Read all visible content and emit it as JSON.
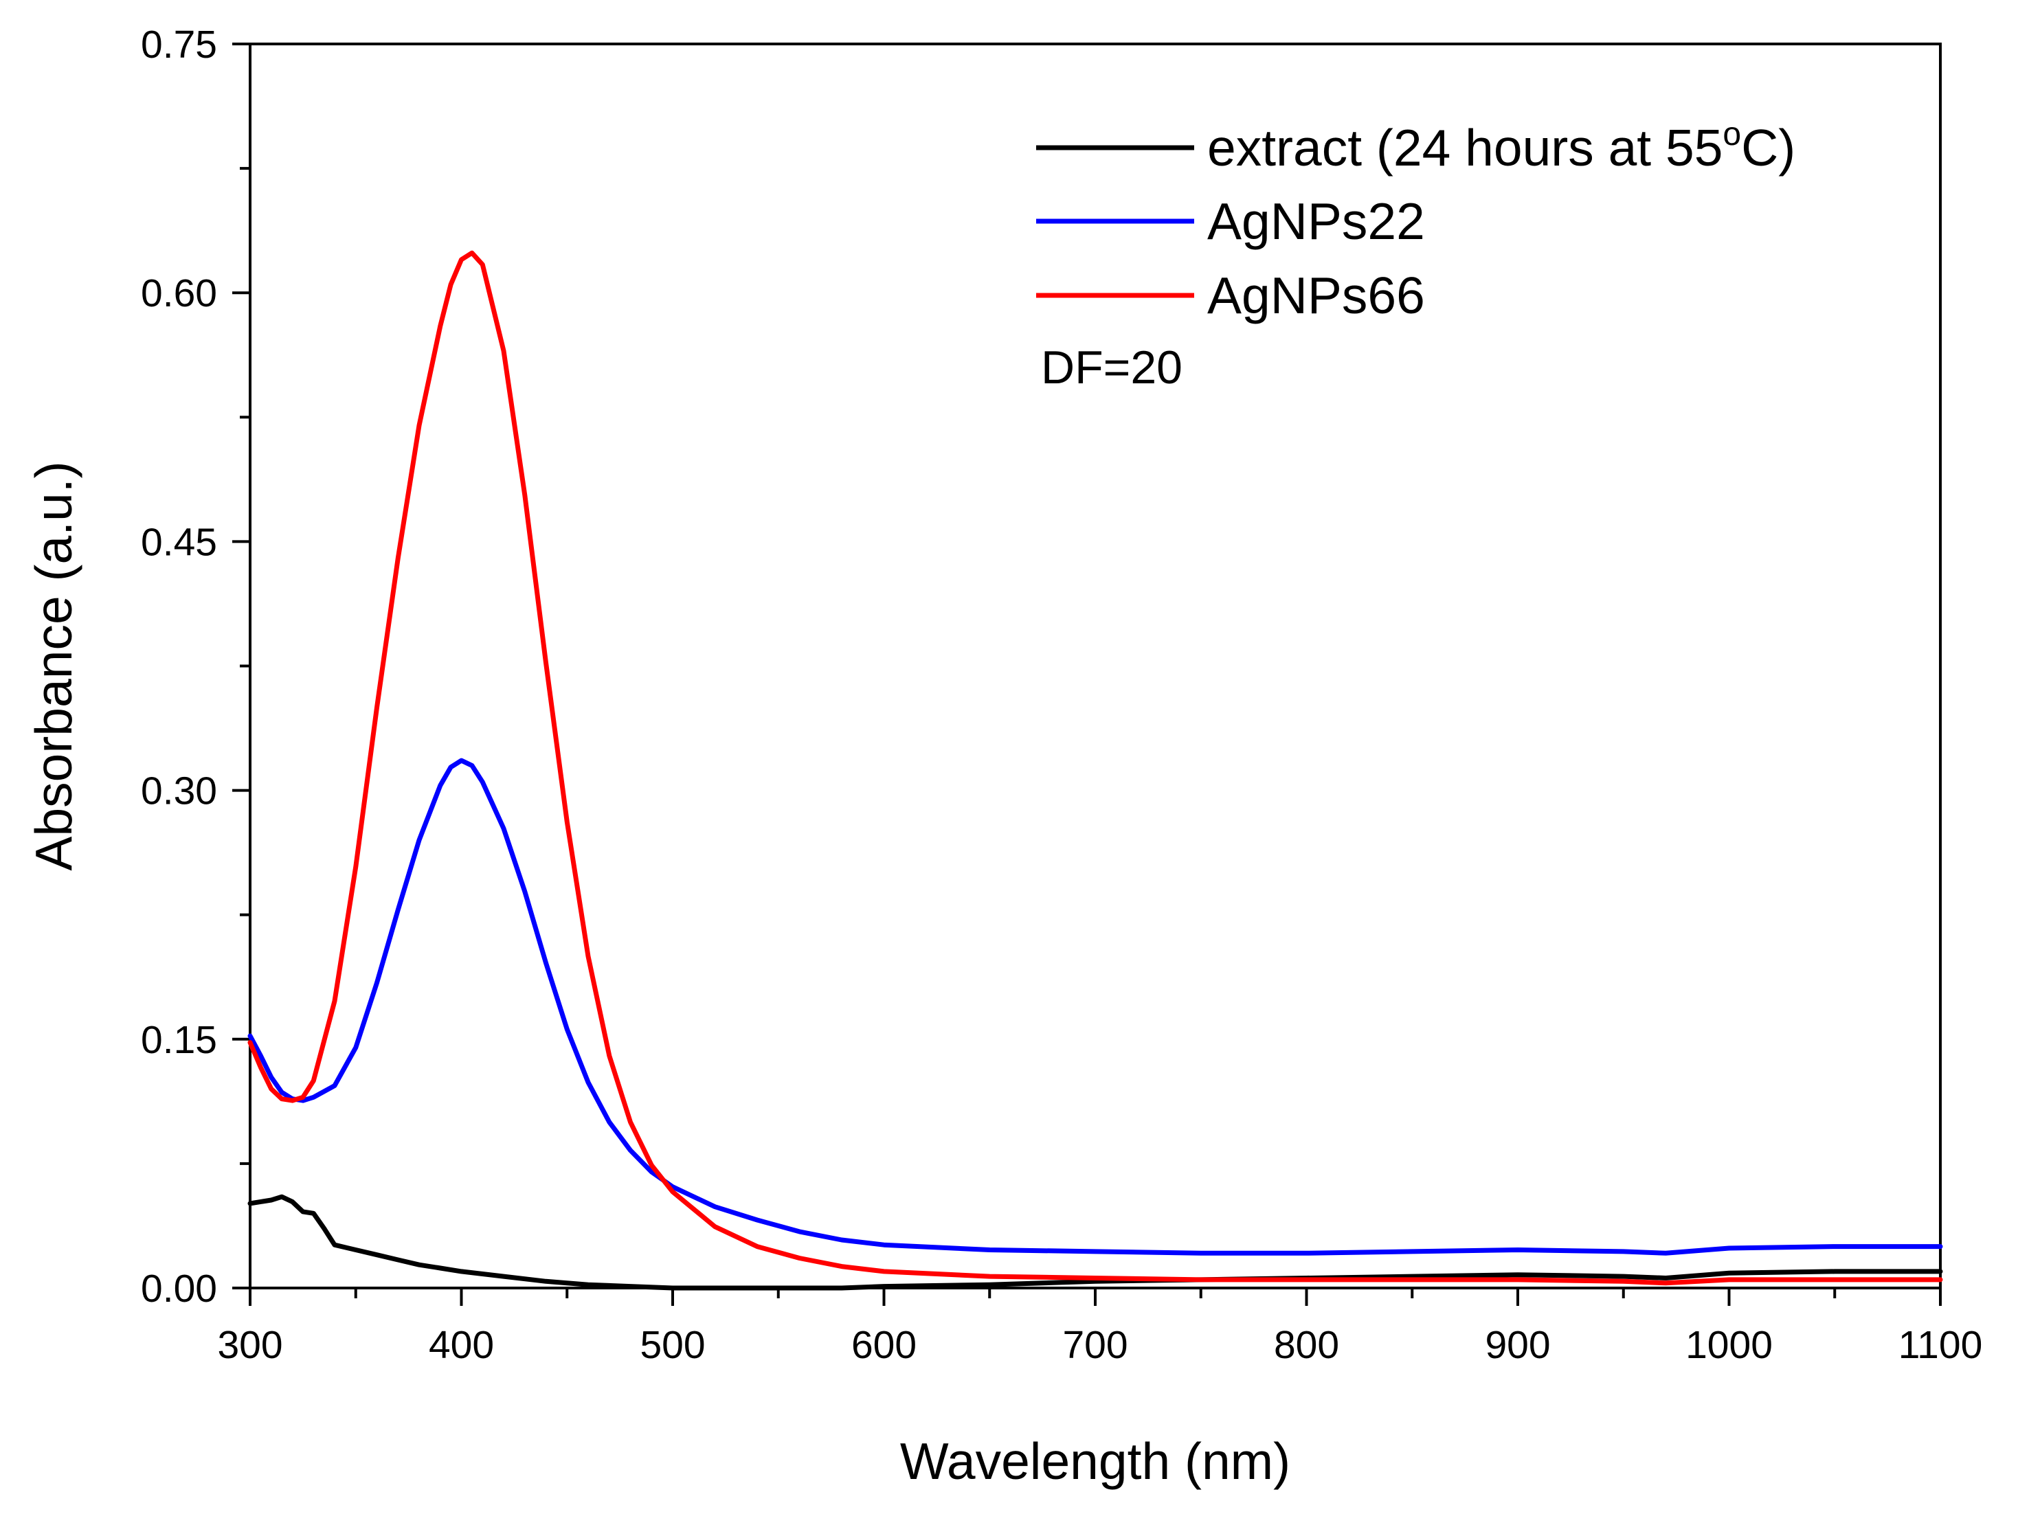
{
  "chart_data": {
    "type": "line",
    "title": "",
    "xlabel": "Wavelength (nm)",
    "ylabel": "Absorbance (a.u.)",
    "xlim": [
      300,
      1100
    ],
    "ylim": [
      0.0,
      0.75
    ],
    "x_ticks": [
      300,
      400,
      500,
      600,
      700,
      800,
      900,
      1000,
      1100
    ],
    "y_ticks": [
      "0.00",
      "0.15",
      "0.30",
      "0.45",
      "0.60",
      "0.75"
    ],
    "grid": false,
    "legend_position": "top-right",
    "annotation": "DF=20",
    "series": [
      {
        "name": "extract (24 hours at 55°C)",
        "color": "#000000",
        "x": [
          300,
          305,
          310,
          315,
          320,
          325,
          330,
          335,
          340,
          350,
          360,
          370,
          380,
          390,
          400,
          420,
          440,
          460,
          480,
          500,
          520,
          540,
          560,
          580,
          600,
          650,
          700,
          750,
          800,
          850,
          900,
          950,
          970,
          1000,
          1050,
          1100
        ],
        "y": [
          0.051,
          0.052,
          0.053,
          0.055,
          0.052,
          0.046,
          0.045,
          0.036,
          0.026,
          0.023,
          0.02,
          0.017,
          0.014,
          0.012,
          0.01,
          0.007,
          0.004,
          0.002,
          0.001,
          0.0,
          0.0,
          0.0,
          0.0,
          0.0,
          0.001,
          0.002,
          0.004,
          0.005,
          0.006,
          0.007,
          0.008,
          0.007,
          0.006,
          0.009,
          0.01,
          0.01
        ]
      },
      {
        "name": "AgNPs22",
        "color": "#0000ff",
        "x": [
          300,
          305,
          310,
          315,
          320,
          325,
          330,
          340,
          350,
          360,
          370,
          380,
          390,
          395,
          400,
          405,
          410,
          420,
          430,
          440,
          450,
          460,
          470,
          480,
          490,
          500,
          520,
          540,
          560,
          580,
          600,
          650,
          700,
          750,
          800,
          850,
          900,
          950,
          970,
          1000,
          1050,
          1100
        ],
        "y": [
          0.152,
          0.14,
          0.127,
          0.118,
          0.114,
          0.113,
          0.115,
          0.122,
          0.145,
          0.184,
          0.228,
          0.27,
          0.303,
          0.314,
          0.318,
          0.315,
          0.305,
          0.277,
          0.239,
          0.196,
          0.156,
          0.124,
          0.1,
          0.083,
          0.07,
          0.061,
          0.049,
          0.041,
          0.034,
          0.029,
          0.026,
          0.023,
          0.022,
          0.021,
          0.021,
          0.022,
          0.023,
          0.022,
          0.021,
          0.024,
          0.025,
          0.025
        ]
      },
      {
        "name": "AgNPs66",
        "color": "#ff0000",
        "x": [
          300,
          305,
          310,
          315,
          320,
          325,
          330,
          340,
          350,
          360,
          370,
          380,
          390,
          395,
          400,
          405,
          410,
          420,
          430,
          440,
          450,
          460,
          470,
          480,
          490,
          500,
          520,
          540,
          560,
          580,
          600,
          650,
          700,
          750,
          800,
          850,
          900,
          950,
          970,
          1000,
          1050,
          1100
        ],
        "y": [
          0.148,
          0.133,
          0.12,
          0.114,
          0.113,
          0.115,
          0.125,
          0.173,
          0.254,
          0.35,
          0.44,
          0.52,
          0.58,
          0.605,
          0.62,
          0.624,
          0.617,
          0.565,
          0.478,
          0.377,
          0.281,
          0.2,
          0.14,
          0.1,
          0.074,
          0.058,
          0.037,
          0.025,
          0.018,
          0.013,
          0.01,
          0.007,
          0.006,
          0.005,
          0.005,
          0.005,
          0.005,
          0.004,
          0.003,
          0.005,
          0.005,
          0.005
        ]
      }
    ]
  }
}
